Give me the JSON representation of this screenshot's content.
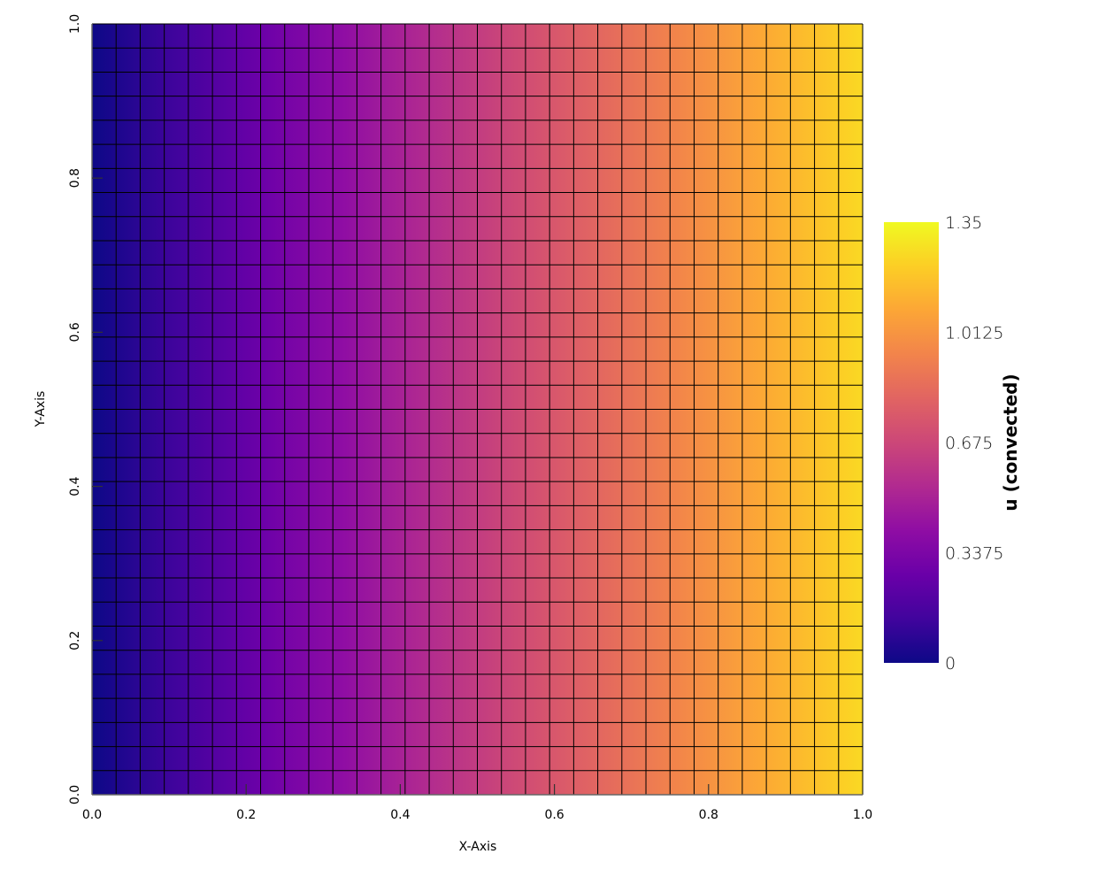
{
  "chart_data": {
    "type": "heatmap",
    "xlabel": "X-Axis",
    "ylabel": "Y-Axis",
    "xlim": [
      0.0,
      1.0
    ],
    "ylim": [
      0.0,
      1.0
    ],
    "x_ticks": [
      "0.0",
      "0.2",
      "0.4",
      "0.6",
      "0.8",
      "1.0"
    ],
    "y_ticks": [
      "0.0",
      "0.2",
      "0.4",
      "0.6",
      "0.8",
      "1.0"
    ],
    "mesh_cells": [
      32,
      32
    ],
    "show_edges": true,
    "colormap": "plasma",
    "field": {
      "x": [
        0.0,
        0.25,
        0.5,
        0.75,
        1.0
      ],
      "u": [
        0.0,
        0.3125,
        0.625,
        0.9375,
        1.25
      ]
    },
    "colorbar": {
      "title": "u (convected)",
      "range": [
        0,
        1.35
      ],
      "ticks": [
        "1.35",
        "1.0125",
        "0.675",
        "0.3375",
        "0"
      ]
    },
    "colormap_stops": [
      "#0d0887",
      "#41049d",
      "#6a00a8",
      "#8f0da4",
      "#b12a90",
      "#cc4778",
      "#e16462",
      "#f2844b",
      "#fca636",
      "#fcce25",
      "#f0f921"
    ]
  }
}
